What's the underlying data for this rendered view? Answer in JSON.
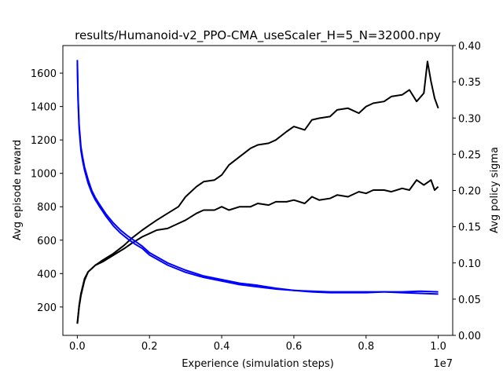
{
  "chart_data": {
    "type": "line",
    "title": "results/Humanoid-v2_PPO-CMA_useScaler_H=5_N=32000.npy",
    "xlabel": "Experience (simulation steps)",
    "ylabel_left": "Avg episode reward",
    "ylabel_right": "Avg policy sigma",
    "x_offset_label": "1e7",
    "xlim": [
      -0.04,
      1.04
    ],
    "ylim_left": [
      30,
      1765
    ],
    "ylim_right": [
      0.0,
      0.4
    ],
    "x_ticks": [
      0.0,
      0.2,
      0.4,
      0.6,
      0.8,
      1.0
    ],
    "x_tick_labels": [
      "0.0",
      "0.2",
      "0.4",
      "0.6",
      "0.8",
      "1.0"
    ],
    "y_left_ticks": [
      200,
      400,
      600,
      800,
      1000,
      1200,
      1400,
      1600
    ],
    "y_left_tick_labels": [
      "200",
      "400",
      "600",
      "800",
      "1000",
      "1200",
      "1400",
      "1600"
    ],
    "y_right_ticks": [
      0.0,
      0.05,
      0.1,
      0.15,
      0.2,
      0.25,
      0.3,
      0.35,
      0.4
    ],
    "y_right_tick_labels": [
      "0.00",
      "0.05",
      "0.10",
      "0.15",
      "0.20",
      "0.25",
      "0.30",
      "0.35",
      "0.40"
    ],
    "colors": {
      "reward": "#000000",
      "sigma": "#0000ff",
      "right_label": "#0000ff"
    },
    "series": [
      {
        "axis": "left",
        "color": "#000000",
        "x": [
          0.0,
          0.005,
          0.01,
          0.02,
          0.03,
          0.05,
          0.07,
          0.1,
          0.13,
          0.15,
          0.18,
          0.2,
          0.22,
          0.25,
          0.28,
          0.3,
          0.33,
          0.35,
          0.38,
          0.4,
          0.42,
          0.45,
          0.48,
          0.5,
          0.53,
          0.55,
          0.58,
          0.6,
          0.63,
          0.65,
          0.67,
          0.7,
          0.72,
          0.75,
          0.78,
          0.8,
          0.82,
          0.85,
          0.87,
          0.9,
          0.92,
          0.94,
          0.96,
          0.97,
          0.98,
          0.99,
          1.0
        ],
        "y": [
          100,
          200,
          270,
          360,
          410,
          450,
          480,
          520,
          570,
          610,
          660,
          690,
          720,
          760,
          800,
          860,
          920,
          950,
          960,
          990,
          1050,
          1100,
          1150,
          1170,
          1180,
          1200,
          1250,
          1280,
          1260,
          1320,
          1330,
          1340,
          1380,
          1390,
          1360,
          1400,
          1420,
          1430,
          1460,
          1470,
          1500,
          1430,
          1480,
          1670,
          1550,
          1450,
          1390
        ]
      },
      {
        "axis": "left",
        "color": "#000000",
        "x": [
          0.0,
          0.005,
          0.01,
          0.02,
          0.03,
          0.05,
          0.07,
          0.1,
          0.13,
          0.15,
          0.18,
          0.2,
          0.22,
          0.25,
          0.28,
          0.3,
          0.33,
          0.35,
          0.38,
          0.4,
          0.42,
          0.45,
          0.48,
          0.5,
          0.53,
          0.55,
          0.58,
          0.6,
          0.63,
          0.65,
          0.67,
          0.7,
          0.72,
          0.75,
          0.78,
          0.8,
          0.82,
          0.85,
          0.87,
          0.9,
          0.92,
          0.94,
          0.96,
          0.98,
          0.99,
          1.0
        ],
        "y": [
          100,
          210,
          280,
          370,
          410,
          450,
          470,
          510,
          550,
          580,
          620,
          640,
          660,
          670,
          700,
          720,
          760,
          780,
          780,
          800,
          780,
          800,
          800,
          820,
          810,
          830,
          830,
          840,
          820,
          860,
          840,
          850,
          870,
          860,
          890,
          880,
          900,
          900,
          890,
          910,
          900,
          960,
          930,
          960,
          900,
          920
        ]
      },
      {
        "axis": "right",
        "color": "#0000ff",
        "x": [
          0.0,
          0.002,
          0.005,
          0.01,
          0.015,
          0.02,
          0.03,
          0.04,
          0.05,
          0.06,
          0.08,
          0.1,
          0.12,
          0.14,
          0.16,
          0.18,
          0.2,
          0.25,
          0.3,
          0.35,
          0.4,
          0.45,
          0.5,
          0.55,
          0.6,
          0.65,
          0.7,
          0.75,
          0.8,
          0.85,
          0.9,
          0.95,
          1.0
        ],
        "y": [
          0.38,
          0.33,
          0.29,
          0.26,
          0.245,
          0.232,
          0.215,
          0.2,
          0.19,
          0.182,
          0.167,
          0.155,
          0.145,
          0.137,
          0.13,
          0.123,
          0.114,
          0.1,
          0.09,
          0.082,
          0.077,
          0.072,
          0.069,
          0.065,
          0.062,
          0.061,
          0.06,
          0.06,
          0.06,
          0.06,
          0.059,
          0.058,
          0.057
        ]
      },
      {
        "axis": "right",
        "color": "#0000ff",
        "x": [
          0.0,
          0.002,
          0.005,
          0.01,
          0.015,
          0.02,
          0.03,
          0.04,
          0.05,
          0.06,
          0.08,
          0.1,
          0.12,
          0.14,
          0.16,
          0.18,
          0.2,
          0.25,
          0.3,
          0.35,
          0.4,
          0.45,
          0.5,
          0.55,
          0.6,
          0.65,
          0.7,
          0.75,
          0.8,
          0.85,
          0.9,
          0.95,
          1.0
        ],
        "y": [
          0.375,
          0.325,
          0.285,
          0.255,
          0.24,
          0.228,
          0.21,
          0.197,
          0.187,
          0.179,
          0.164,
          0.151,
          0.141,
          0.133,
          0.126,
          0.12,
          0.111,
          0.097,
          0.087,
          0.08,
          0.075,
          0.07,
          0.067,
          0.064,
          0.062,
          0.06,
          0.059,
          0.059,
          0.059,
          0.06,
          0.06,
          0.061,
          0.06
        ]
      }
    ]
  }
}
